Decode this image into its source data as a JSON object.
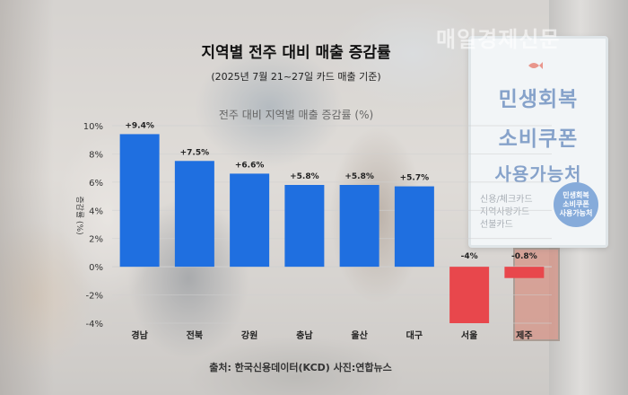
{
  "header": {
    "title": "지역별 전주 대비 매출 증감률",
    "subtitle": "(2025년 7월 21~27일 카드 매출 기준)",
    "source": "출처: 한국신용데이터(KCD) 사진:연합뉴스"
  },
  "background": {
    "watermark": "매일경제신문",
    "sign_lines": [
      "민생회복",
      "소비쿠폰",
      "사용가능처"
    ],
    "sign_small_lines": [
      "신용/체크카드",
      "지역사랑카드",
      "선불카드"
    ],
    "sign_badge_lines": [
      "민생회복",
      "소비쿠폰",
      "사용가능처"
    ]
  },
  "colors": {
    "positive": "#1f6fe0",
    "negative": "#e8474c",
    "grid": "#d0d0d0"
  },
  "chart_data": {
    "type": "bar",
    "title": "전주 대비 지역별 매출 증감률 (%)",
    "ylabel": "증감률 (%)",
    "xlabel": "",
    "categories": [
      "경남",
      "전북",
      "강원",
      "충남",
      "울산",
      "대구",
      "서울",
      "제주"
    ],
    "values": [
      9.4,
      7.5,
      6.6,
      5.8,
      5.8,
      5.7,
      -4.0,
      -0.8
    ],
    "value_labels": [
      "+9.4%",
      "+7.5%",
      "+6.6%",
      "+5.8%",
      "+5.8%",
      "+5.7%",
      "-4%",
      "-0.8%"
    ],
    "ylim": [
      -4,
      10
    ],
    "yticks": [
      -4,
      -2,
      0,
      2,
      4,
      6,
      8,
      10
    ],
    "ytick_labels": [
      "-4%",
      "-2%",
      "0%",
      "2%",
      "4%",
      "6%",
      "8%",
      "10%"
    ],
    "grid": true,
    "legend": "none"
  }
}
